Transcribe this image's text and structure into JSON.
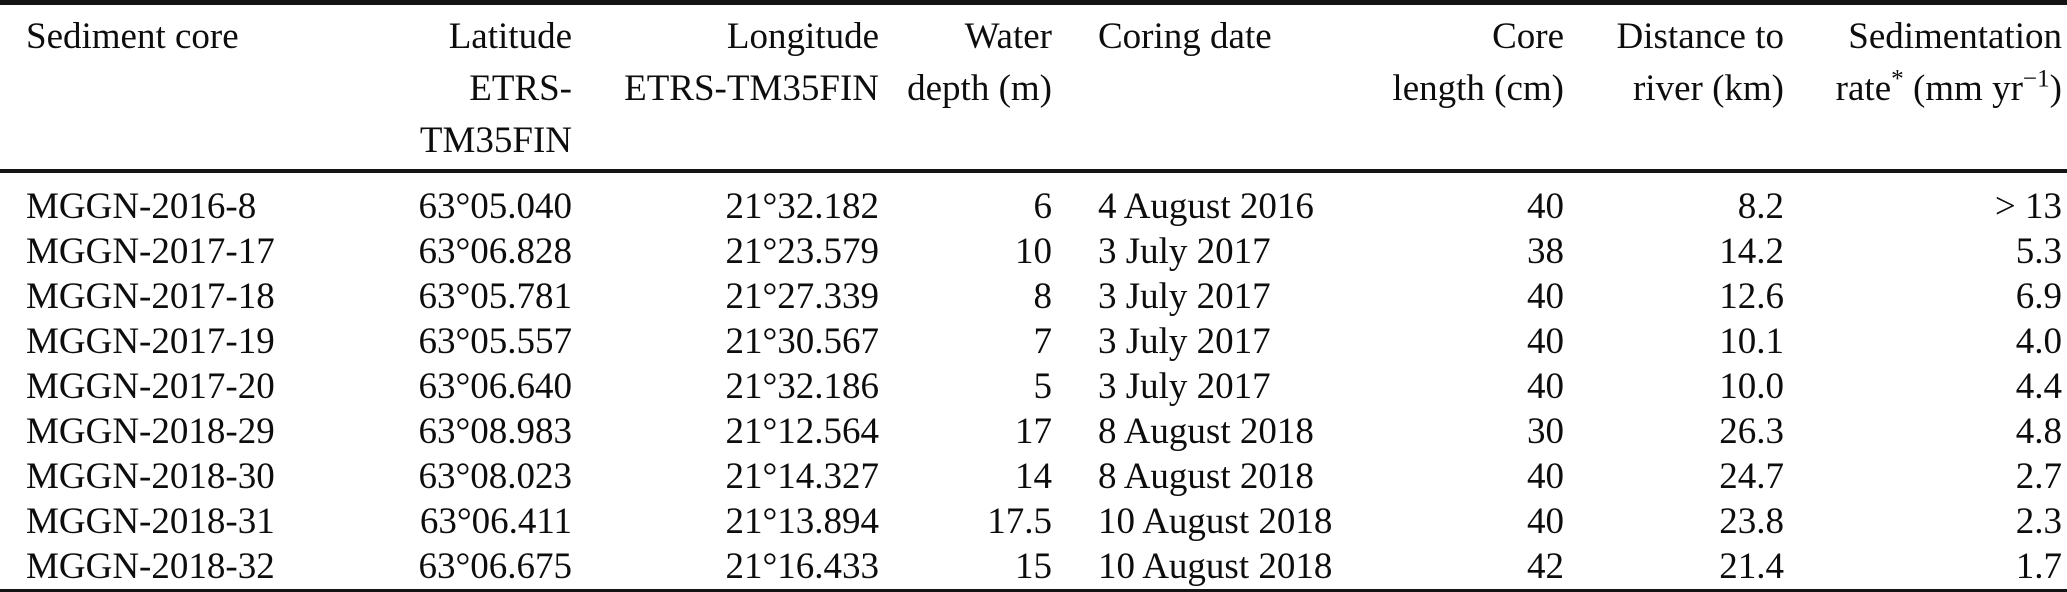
{
  "theme": {
    "background": "#ffffff",
    "ink": "#0d0d0d",
    "rule_color": "#141414"
  },
  "table": {
    "description": "Sediment core metadata table",
    "headers": [
      {
        "line1": "Sediment core",
        "line2": ""
      },
      {
        "line1": "Latitude",
        "line2": "ETRS-TM35FIN"
      },
      {
        "line1": "Longitude",
        "line2": "ETRS-TM35FIN"
      },
      {
        "line1": "Water",
        "line2": "depth (m)"
      },
      {
        "line1": "Coring date",
        "line2": ""
      },
      {
        "line1": "Core",
        "line2": "length (cm)"
      },
      {
        "line1": "Distance to",
        "line2": "river (km)"
      },
      {
        "line1": "Sedimentation",
        "parts": {
          "pre": "rate",
          "sup1": "*",
          "mid": " (mm yr",
          "sup2": "−1",
          "post": ")"
        }
      }
    ],
    "rows": [
      [
        "MGGN-2016-8",
        "63°05.040",
        "21°32.182",
        "6",
        "4 August 2016",
        "40",
        "8.2",
        "> 13"
      ],
      [
        "MGGN-2017-17",
        "63°06.828",
        "21°23.579",
        "10",
        "3 July 2017",
        "38",
        "14.2",
        "5.3"
      ],
      [
        "MGGN-2017-18",
        "63°05.781",
        "21°27.339",
        "8",
        "3 July 2017",
        "40",
        "12.6",
        "6.9"
      ],
      [
        "MGGN-2017-19",
        "63°05.557",
        "21°30.567",
        "7",
        "3 July 2017",
        "40",
        "10.1",
        "4.0"
      ],
      [
        "MGGN-2017-20",
        "63°06.640",
        "21°32.186",
        "5",
        "3 July 2017",
        "40",
        "10.0",
        "4.4"
      ],
      [
        "MGGN-2018-29",
        "63°08.983",
        "21°12.564",
        "17",
        "8 August 2018",
        "30",
        "26.3",
        "4.8"
      ],
      [
        "MGGN-2018-30",
        "63°08.023",
        "21°14.327",
        "14",
        "8 August 2018",
        "40",
        "24.7",
        "2.7"
      ],
      [
        "MGGN-2018-31",
        "63°06.411",
        "21°13.894",
        "17.5",
        "10 August 2018",
        "40",
        "23.8",
        "2.3"
      ],
      [
        "MGGN-2018-32",
        "63°06.675",
        "21°16.433",
        "15",
        "10 August 2018",
        "42",
        "21.4",
        "1.7"
      ]
    ]
  }
}
